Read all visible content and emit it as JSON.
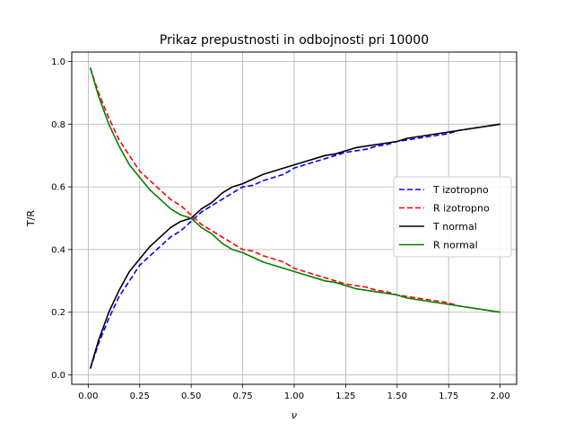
{
  "chart_data": {
    "type": "line",
    "title": "Prikaz prepustnosti in odbojnosti pri 10000",
    "xlabel": "ν",
    "ylabel": "T/R",
    "xlim": [
      -0.08,
      2.08
    ],
    "ylim": [
      -0.03,
      1.03
    ],
    "xticks": [
      0.0,
      0.25,
      0.5,
      0.75,
      1.0,
      1.25,
      1.5,
      1.75,
      2.0
    ],
    "xtick_labels": [
      "0.00",
      "0.25",
      "0.50",
      "0.75",
      "1.00",
      "1.25",
      "1.50",
      "1.75",
      "2.00"
    ],
    "yticks": [
      0.0,
      0.2,
      0.4,
      0.6,
      0.8,
      1.0
    ],
    "ytick_labels": [
      "0.0",
      "0.2",
      "0.4",
      "0.6",
      "0.8",
      "1.0"
    ],
    "grid": true,
    "legend_position": "center-right",
    "x": [
      0.01,
      0.05,
      0.1,
      0.15,
      0.2,
      0.25,
      0.3,
      0.35,
      0.4,
      0.45,
      0.5,
      0.55,
      0.6,
      0.65,
      0.7,
      0.75,
      0.8,
      0.85,
      0.9,
      0.95,
      1.0,
      1.05,
      1.1,
      1.15,
      1.2,
      1.25,
      1.3,
      1.35,
      1.4,
      1.45,
      1.5,
      1.55,
      1.6,
      1.65,
      1.7,
      1.75,
      1.8,
      1.85,
      1.9,
      1.95,
      2.0
    ],
    "series": [
      {
        "name": "T izotropno",
        "color": "#0000ff",
        "dash": "dashed",
        "values": [
          0.02,
          0.1,
          0.18,
          0.25,
          0.3,
          0.35,
          0.38,
          0.41,
          0.44,
          0.46,
          0.49,
          0.52,
          0.54,
          0.56,
          0.58,
          0.6,
          0.605,
          0.62,
          0.63,
          0.64,
          0.66,
          0.67,
          0.68,
          0.69,
          0.7,
          0.71,
          0.715,
          0.72,
          0.73,
          0.735,
          0.745,
          0.75,
          0.755,
          0.76,
          0.765,
          0.77,
          0.78,
          0.785,
          0.79,
          0.795,
          0.8
        ]
      },
      {
        "name": "R izotropno",
        "color": "#ff0000",
        "dash": "dashed",
        "values": [
          0.98,
          0.9,
          0.82,
          0.75,
          0.7,
          0.65,
          0.62,
          0.59,
          0.56,
          0.54,
          0.51,
          0.48,
          0.46,
          0.44,
          0.42,
          0.4,
          0.395,
          0.38,
          0.37,
          0.36,
          0.34,
          0.33,
          0.32,
          0.31,
          0.3,
          0.29,
          0.285,
          0.28,
          0.27,
          0.265,
          0.255,
          0.25,
          0.245,
          0.24,
          0.235,
          0.23,
          0.22,
          0.215,
          0.21,
          0.205,
          0.2
        ]
      },
      {
        "name": "T normal",
        "color": "#000000",
        "dash": "solid",
        "values": [
          0.02,
          0.11,
          0.2,
          0.27,
          0.33,
          0.37,
          0.41,
          0.44,
          0.47,
          0.49,
          0.5,
          0.53,
          0.55,
          0.58,
          0.6,
          0.61,
          0.625,
          0.64,
          0.65,
          0.66,
          0.67,
          0.68,
          0.69,
          0.7,
          0.705,
          0.715,
          0.725,
          0.73,
          0.735,
          0.74,
          0.745,
          0.755,
          0.76,
          0.765,
          0.77,
          0.775,
          0.78,
          0.785,
          0.79,
          0.795,
          0.8
        ]
      },
      {
        "name": "R normal",
        "color": "#008000",
        "dash": "solid",
        "values": [
          0.98,
          0.89,
          0.8,
          0.73,
          0.67,
          0.63,
          0.59,
          0.56,
          0.53,
          0.51,
          0.5,
          0.47,
          0.45,
          0.42,
          0.4,
          0.39,
          0.375,
          0.36,
          0.35,
          0.34,
          0.33,
          0.32,
          0.31,
          0.3,
          0.295,
          0.285,
          0.275,
          0.27,
          0.265,
          0.26,
          0.255,
          0.245,
          0.24,
          0.235,
          0.23,
          0.225,
          0.22,
          0.215,
          0.21,
          0.205,
          0.2
        ]
      }
    ]
  }
}
